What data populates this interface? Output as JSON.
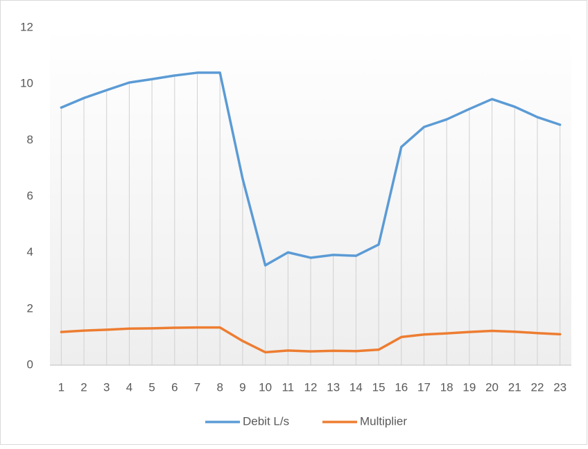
{
  "chart_data": {
    "type": "line",
    "categories": [
      "1",
      "2",
      "3",
      "4",
      "5",
      "6",
      "7",
      "8",
      "9",
      "10",
      "11",
      "12",
      "13",
      "14",
      "15",
      "16",
      "17",
      "18",
      "19",
      "20",
      "21",
      "22",
      "23"
    ],
    "series": [
      {
        "name": "Debit L/s",
        "color": "#5b9bd5",
        "values": [
          9.16,
          9.5,
          9.78,
          10.05,
          10.17,
          10.3,
          10.4,
          10.4,
          6.63,
          3.55,
          4.01,
          3.82,
          3.92,
          3.89,
          4.29,
          7.76,
          8.47,
          8.74,
          9.11,
          9.46,
          9.19,
          8.82,
          8.55
        ]
      },
      {
        "name": "Multiplier",
        "color": "#ed7d31",
        "values": [
          1.18,
          1.23,
          1.26,
          1.3,
          1.31,
          1.33,
          1.34,
          1.34,
          0.86,
          0.46,
          0.52,
          0.49,
          0.51,
          0.5,
          0.55,
          1.0,
          1.09,
          1.13,
          1.18,
          1.22,
          1.19,
          1.14,
          1.1
        ]
      }
    ],
    "ylim": [
      0,
      12
    ],
    "yticks": [
      0,
      2,
      4,
      6,
      8,
      10,
      12
    ],
    "drop_lines": true,
    "legend": "bottom"
  }
}
